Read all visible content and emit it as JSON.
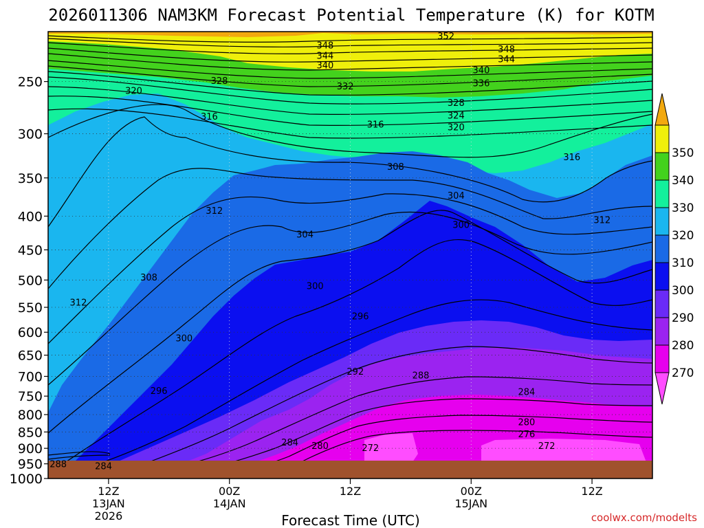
{
  "chart_data": {
    "type": "heatmap",
    "title": "2026011306 NAM3KM Forecast Potential Temperature (K) for KOTM",
    "xlabel": "Forecast Time (UTC)",
    "ylabel": "",
    "credit": "coolwx.com/modelts",
    "y_axis": {
      "units": "hPa",
      "scale": "log-pressure",
      "inverted": true,
      "ylim": [
        1000,
        210
      ],
      "ticks": [
        250,
        300,
        350,
        400,
        450,
        500,
        550,
        600,
        650,
        700,
        750,
        800,
        850,
        900,
        950,
        1000
      ],
      "tick_labels": [
        "250",
        "300",
        "350",
        "400",
        "450",
        "500",
        "550",
        "600",
        "650",
        "700",
        "750",
        "800",
        "850",
        "900",
        "950",
        "1000"
      ]
    },
    "x_axis": {
      "units": "forecast hour",
      "xlim": [
        0,
        60
      ],
      "ticks": [
        {
          "hour": 6,
          "lines": [
            "12Z",
            "13JAN",
            "2026"
          ]
        },
        {
          "hour": 18,
          "lines": [
            "00Z",
            "14JAN"
          ]
        },
        {
          "hour": 30,
          "lines": [
            "12Z"
          ]
        },
        {
          "hour": 42,
          "lines": [
            "00Z",
            "15JAN"
          ]
        },
        {
          "hour": 54,
          "lines": [
            "12Z"
          ]
        }
      ]
    },
    "colorbar": {
      "label": "K",
      "bounds": [
        260,
        270,
        280,
        290,
        300,
        310,
        320,
        330,
        340,
        350,
        360
      ],
      "tick_labels": [
        "270",
        "280",
        "290",
        "300",
        "310",
        "320",
        "330",
        "340",
        "350"
      ],
      "colors": [
        "#ff4dff",
        "#e600ee",
        "#9b23f0",
        "#6a2bf7",
        "#0b0ff0",
        "#1a6ae6",
        "#1ab6ef",
        "#13f09c",
        "#43d21d",
        "#efef0b",
        "#f2a90f"
      ]
    },
    "contour_interval": 2,
    "contour_labels": [
      {
        "text": "352",
        "hour": 39.5,
        "p": 213
      },
      {
        "text": "348",
        "hour": 27.5,
        "p": 220
      },
      {
        "text": "348",
        "hour": 45.5,
        "p": 223
      },
      {
        "text": "344",
        "hour": 27.5,
        "p": 228
      },
      {
        "text": "344",
        "hour": 45.5,
        "p": 231
      },
      {
        "text": "340",
        "hour": 27.5,
        "p": 236
      },
      {
        "text": "340",
        "hour": 43,
        "p": 240
      },
      {
        "text": "336",
        "hour": 43,
        "p": 251
      },
      {
        "text": "332",
        "hour": 29.5,
        "p": 254
      },
      {
        "text": "328",
        "hour": 17,
        "p": 249
      },
      {
        "text": "320",
        "hour": 8.5,
        "p": 258
      },
      {
        "text": "328",
        "hour": 40.5,
        "p": 269
      },
      {
        "text": "324",
        "hour": 40.5,
        "p": 281
      },
      {
        "text": "320",
        "hour": 40.5,
        "p": 293
      },
      {
        "text": "316",
        "hour": 16,
        "p": 282
      },
      {
        "text": "316",
        "hour": 32.5,
        "p": 290
      },
      {
        "text": "316",
        "hour": 52,
        "p": 325
      },
      {
        "text": "308",
        "hour": 34.5,
        "p": 336
      },
      {
        "text": "304",
        "hour": 40.5,
        "p": 372
      },
      {
        "text": "312",
        "hour": 16.5,
        "p": 392
      },
      {
        "text": "312",
        "hour": 55,
        "p": 405
      },
      {
        "text": "304",
        "hour": 25.5,
        "p": 426
      },
      {
        "text": "300",
        "hour": 41,
        "p": 412
      },
      {
        "text": "308",
        "hour": 10,
        "p": 495
      },
      {
        "text": "300",
        "hour": 26.5,
        "p": 510
      },
      {
        "text": "312",
        "hour": 3,
        "p": 540
      },
      {
        "text": "296",
        "hour": 31,
        "p": 567
      },
      {
        "text": "300",
        "hour": 13.5,
        "p": 612
      },
      {
        "text": "292",
        "hour": 30.5,
        "p": 688
      },
      {
        "text": "288",
        "hour": 37,
        "p": 697
      },
      {
        "text": "296",
        "hour": 11,
        "p": 735
      },
      {
        "text": "284",
        "hour": 47.5,
        "p": 738
      },
      {
        "text": "280",
        "hour": 47.5,
        "p": 820
      },
      {
        "text": "276",
        "hour": 47.5,
        "p": 856
      },
      {
        "text": "284",
        "hour": 24,
        "p": 880
      },
      {
        "text": "280",
        "hour": 27,
        "p": 891
      },
      {
        "text": "272",
        "hour": 32,
        "p": 898
      },
      {
        "text": "272",
        "hour": 49.5,
        "p": 891
      },
      {
        "text": "288",
        "hour": 1,
        "p": 950
      },
      {
        "text": "284",
        "hour": 5.5,
        "p": 956
      }
    ]
  }
}
